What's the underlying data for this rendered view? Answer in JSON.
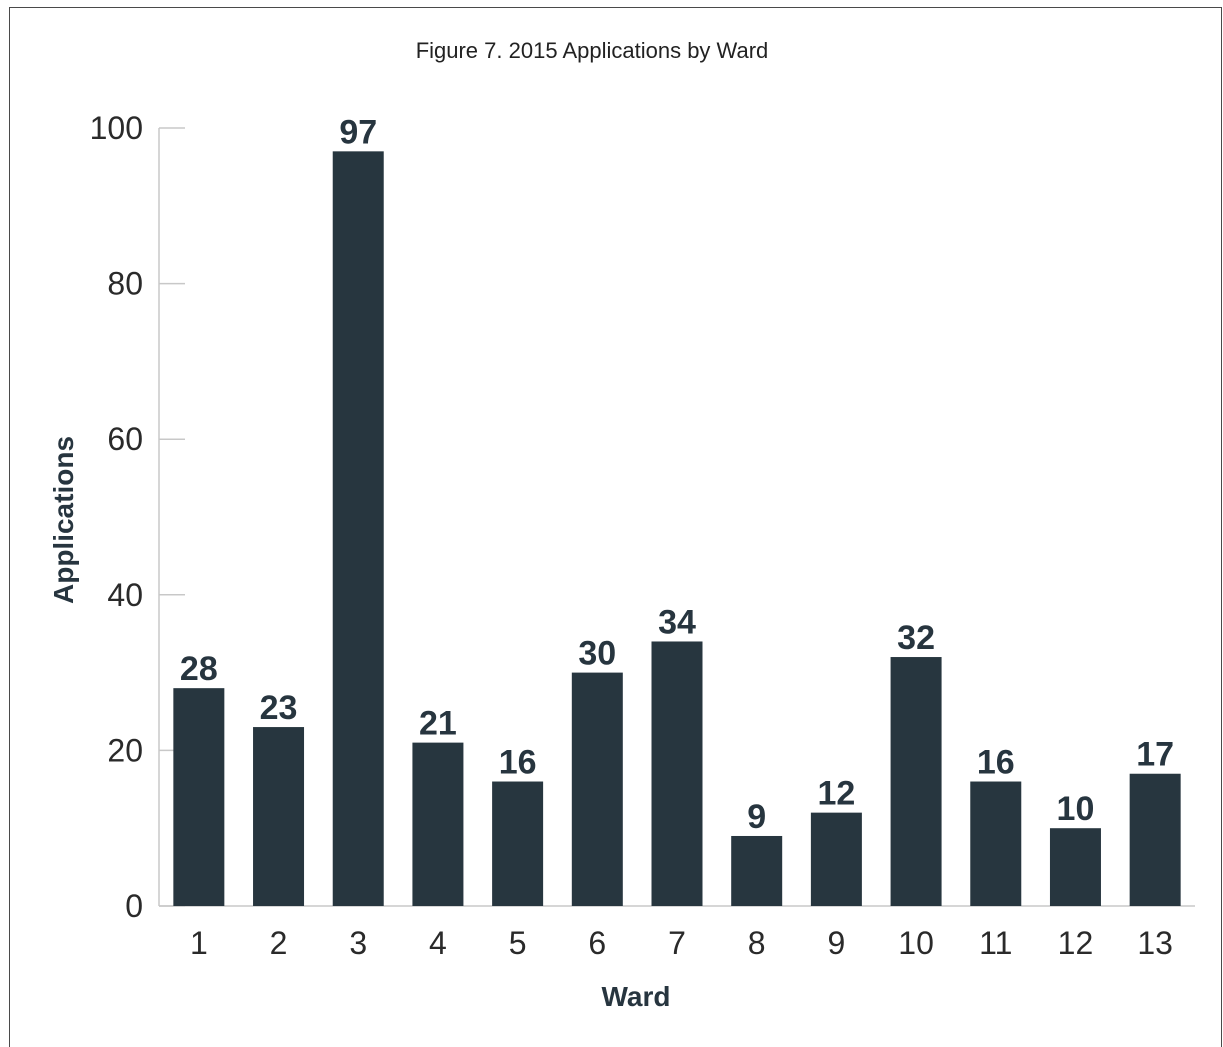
{
  "chart_data": {
    "type": "bar",
    "title": "Figure 7. 2015 Applications by Ward",
    "xlabel": "Ward",
    "ylabel": "Applications",
    "categories": [
      "1",
      "2",
      "3",
      "4",
      "5",
      "6",
      "7",
      "8",
      "9",
      "10",
      "11",
      "12",
      "13"
    ],
    "values": [
      28,
      23,
      97,
      21,
      16,
      30,
      34,
      9,
      12,
      32,
      16,
      10,
      17
    ],
    "ylim": [
      0,
      100
    ],
    "yticks": [
      0,
      20,
      40,
      60,
      80,
      100
    ],
    "grid": false,
    "legend": "none",
    "bar_color": "#27363f",
    "axis_color": "#c8c8c8"
  }
}
